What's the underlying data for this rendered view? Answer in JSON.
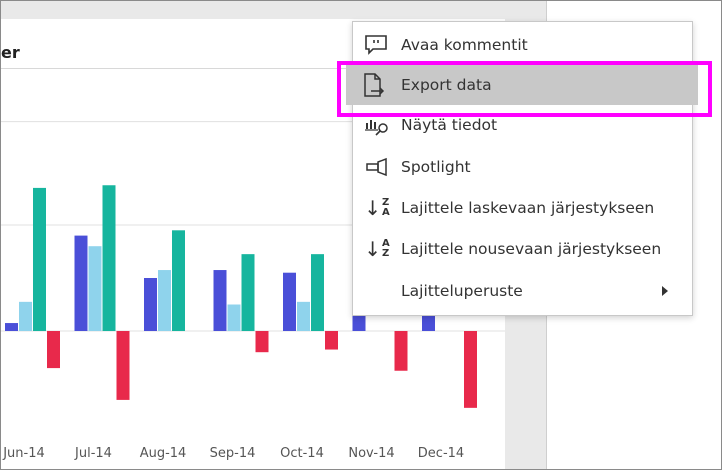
{
  "visual": {
    "title": "er"
  },
  "colors": {
    "series1": "#4a4fd8",
    "series2": "#8fd3ec",
    "series3": "#16b59e",
    "series4": "#e8294b",
    "highlight": "#ff00ff"
  },
  "chart_data": {
    "type": "bar",
    "categories": [
      "Jun-14",
      "Jul-14",
      "Aug-14",
      "Sep-14",
      "Oct-14",
      "Nov-14",
      "Dec-14"
    ],
    "series": [
      {
        "values": [
          3,
          36,
          20,
          23,
          22,
          23,
          30
        ]
      },
      {
        "values": [
          11,
          32,
          23,
          10,
          11,
          0,
          0
        ]
      },
      {
        "values": [
          54,
          55,
          38,
          29,
          29,
          0,
          0
        ]
      },
      {
        "values": [
          -14,
          -26,
          null,
          -8,
          -7,
          -15,
          -29
        ]
      }
    ],
    "grid": true
  },
  "menu": {
    "items": [
      {
        "label": "Avaa kommentit",
        "icon": "comment-icon"
      },
      {
        "label": "Export data",
        "icon": "export-icon"
      },
      {
        "label": "Näytä tiedot",
        "icon": "show-data-icon"
      },
      {
        "label": "Spotlight",
        "icon": "spotlight-icon"
      },
      {
        "label": "Lajittele laskevaan järjestykseen",
        "icon": "sort-descending-icon",
        "letters": [
          "Z",
          "A"
        ]
      },
      {
        "label": "Lajittele nousevaan järjestykseen",
        "icon": "sort-ascending-icon",
        "letters": [
          "A",
          "Z"
        ]
      },
      {
        "label": "Lajitteluperuste",
        "icon": "",
        "submenu": true
      }
    ]
  }
}
